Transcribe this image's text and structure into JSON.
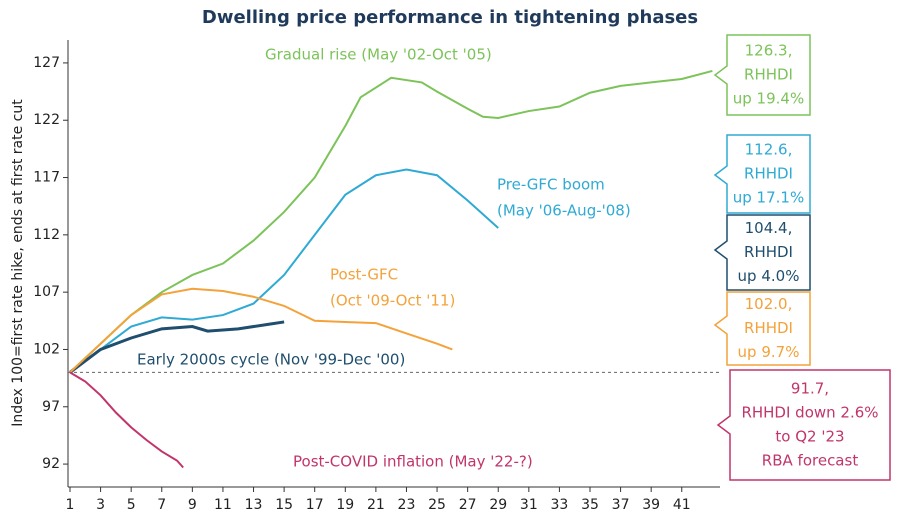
{
  "chart_data": {
    "type": "line",
    "title": "Dwelling price performance in tightening phases",
    "y_label": "Index 100=first rate hike, ends at first rate cut",
    "xlim": [
      1,
      43.5
    ],
    "ylim": [
      90,
      129
    ],
    "xticks": [
      1,
      3,
      5,
      7,
      9,
      11,
      13,
      15,
      17,
      19,
      21,
      23,
      25,
      27,
      29,
      31,
      33,
      35,
      37,
      39,
      41
    ],
    "yticks": [
      92,
      97,
      102,
      107,
      112,
      117,
      122,
      127
    ],
    "reference_line": 100,
    "series": [
      {
        "label": [
          "Gradual rise (May '02-Oct '05)"
        ],
        "color": "#7cc35a",
        "x": [
          1,
          3,
          5,
          7,
          9,
          11,
          13,
          15,
          17,
          19,
          20,
          22,
          24,
          25,
          27,
          28,
          29,
          31,
          33,
          35,
          37,
          39,
          41,
          43
        ],
        "values": [
          100,
          102.5,
          105,
          107,
          108.5,
          109.5,
          111.5,
          114,
          117,
          121.5,
          124,
          125.7,
          125.3,
          124.5,
          123,
          122.3,
          122.2,
          122.8,
          123.2,
          124.4,
          125,
          125.3,
          125.6,
          126.3
        ],
        "callout": [
          "126.3,",
          "RHHDI",
          "up 19.4%"
        ]
      },
      {
        "label": [
          "Pre-GFC boom",
          "(May '06-Aug-'08)"
        ],
        "color": "#2eaad4",
        "x": [
          1,
          3,
          5,
          7,
          9,
          11,
          13,
          15,
          17,
          19,
          21,
          23,
          25,
          27,
          29
        ],
        "values": [
          100,
          102,
          104,
          104.8,
          104.6,
          105,
          106,
          108.5,
          112,
          115.5,
          117.2,
          117.7,
          117.2,
          115,
          112.6
        ],
        "callout": [
          "112.6,",
          "RHHDI",
          "up 17.1%"
        ]
      },
      {
        "label": [
          "Early 2000s cycle (Nov '99-Dec '00)"
        ],
        "color": "#1f4e6e",
        "x": [
          1,
          3,
          5,
          7,
          9,
          10,
          12,
          14,
          15
        ],
        "values": [
          100,
          102,
          103,
          103.8,
          104,
          103.6,
          103.8,
          104.2,
          104.4
        ],
        "callout": [
          "104.4,",
          "RHHDI",
          "up 4.0%"
        ]
      },
      {
        "label": [
          "Post-GFC",
          "(Oct '09-Oct '11)"
        ],
        "color": "#f4a23a",
        "x": [
          1,
          3,
          5,
          7,
          9,
          11,
          13,
          15,
          17,
          19,
          21,
          23,
          25,
          26
        ],
        "values": [
          100,
          102.5,
          105,
          106.8,
          107.3,
          107.1,
          106.6,
          105.8,
          104.5,
          104.4,
          104.3,
          103.4,
          102.5,
          102.0
        ],
        "callout": [
          "102.0,",
          "RHHDI",
          "up 9.7%"
        ]
      },
      {
        "label": [
          "Post-COVID inflation (May '22-?)"
        ],
        "color": "#c1356b",
        "x": [
          1,
          2,
          3,
          4,
          5,
          6,
          7,
          8,
          8.4
        ],
        "values": [
          100,
          99.2,
          98,
          96.5,
          95.2,
          94.1,
          93.1,
          92.3,
          91.7
        ],
        "callout": [
          "91.7,",
          "RHHDI down 2.6%",
          "to Q2 '23",
          "RBA forecast"
        ]
      }
    ]
  }
}
